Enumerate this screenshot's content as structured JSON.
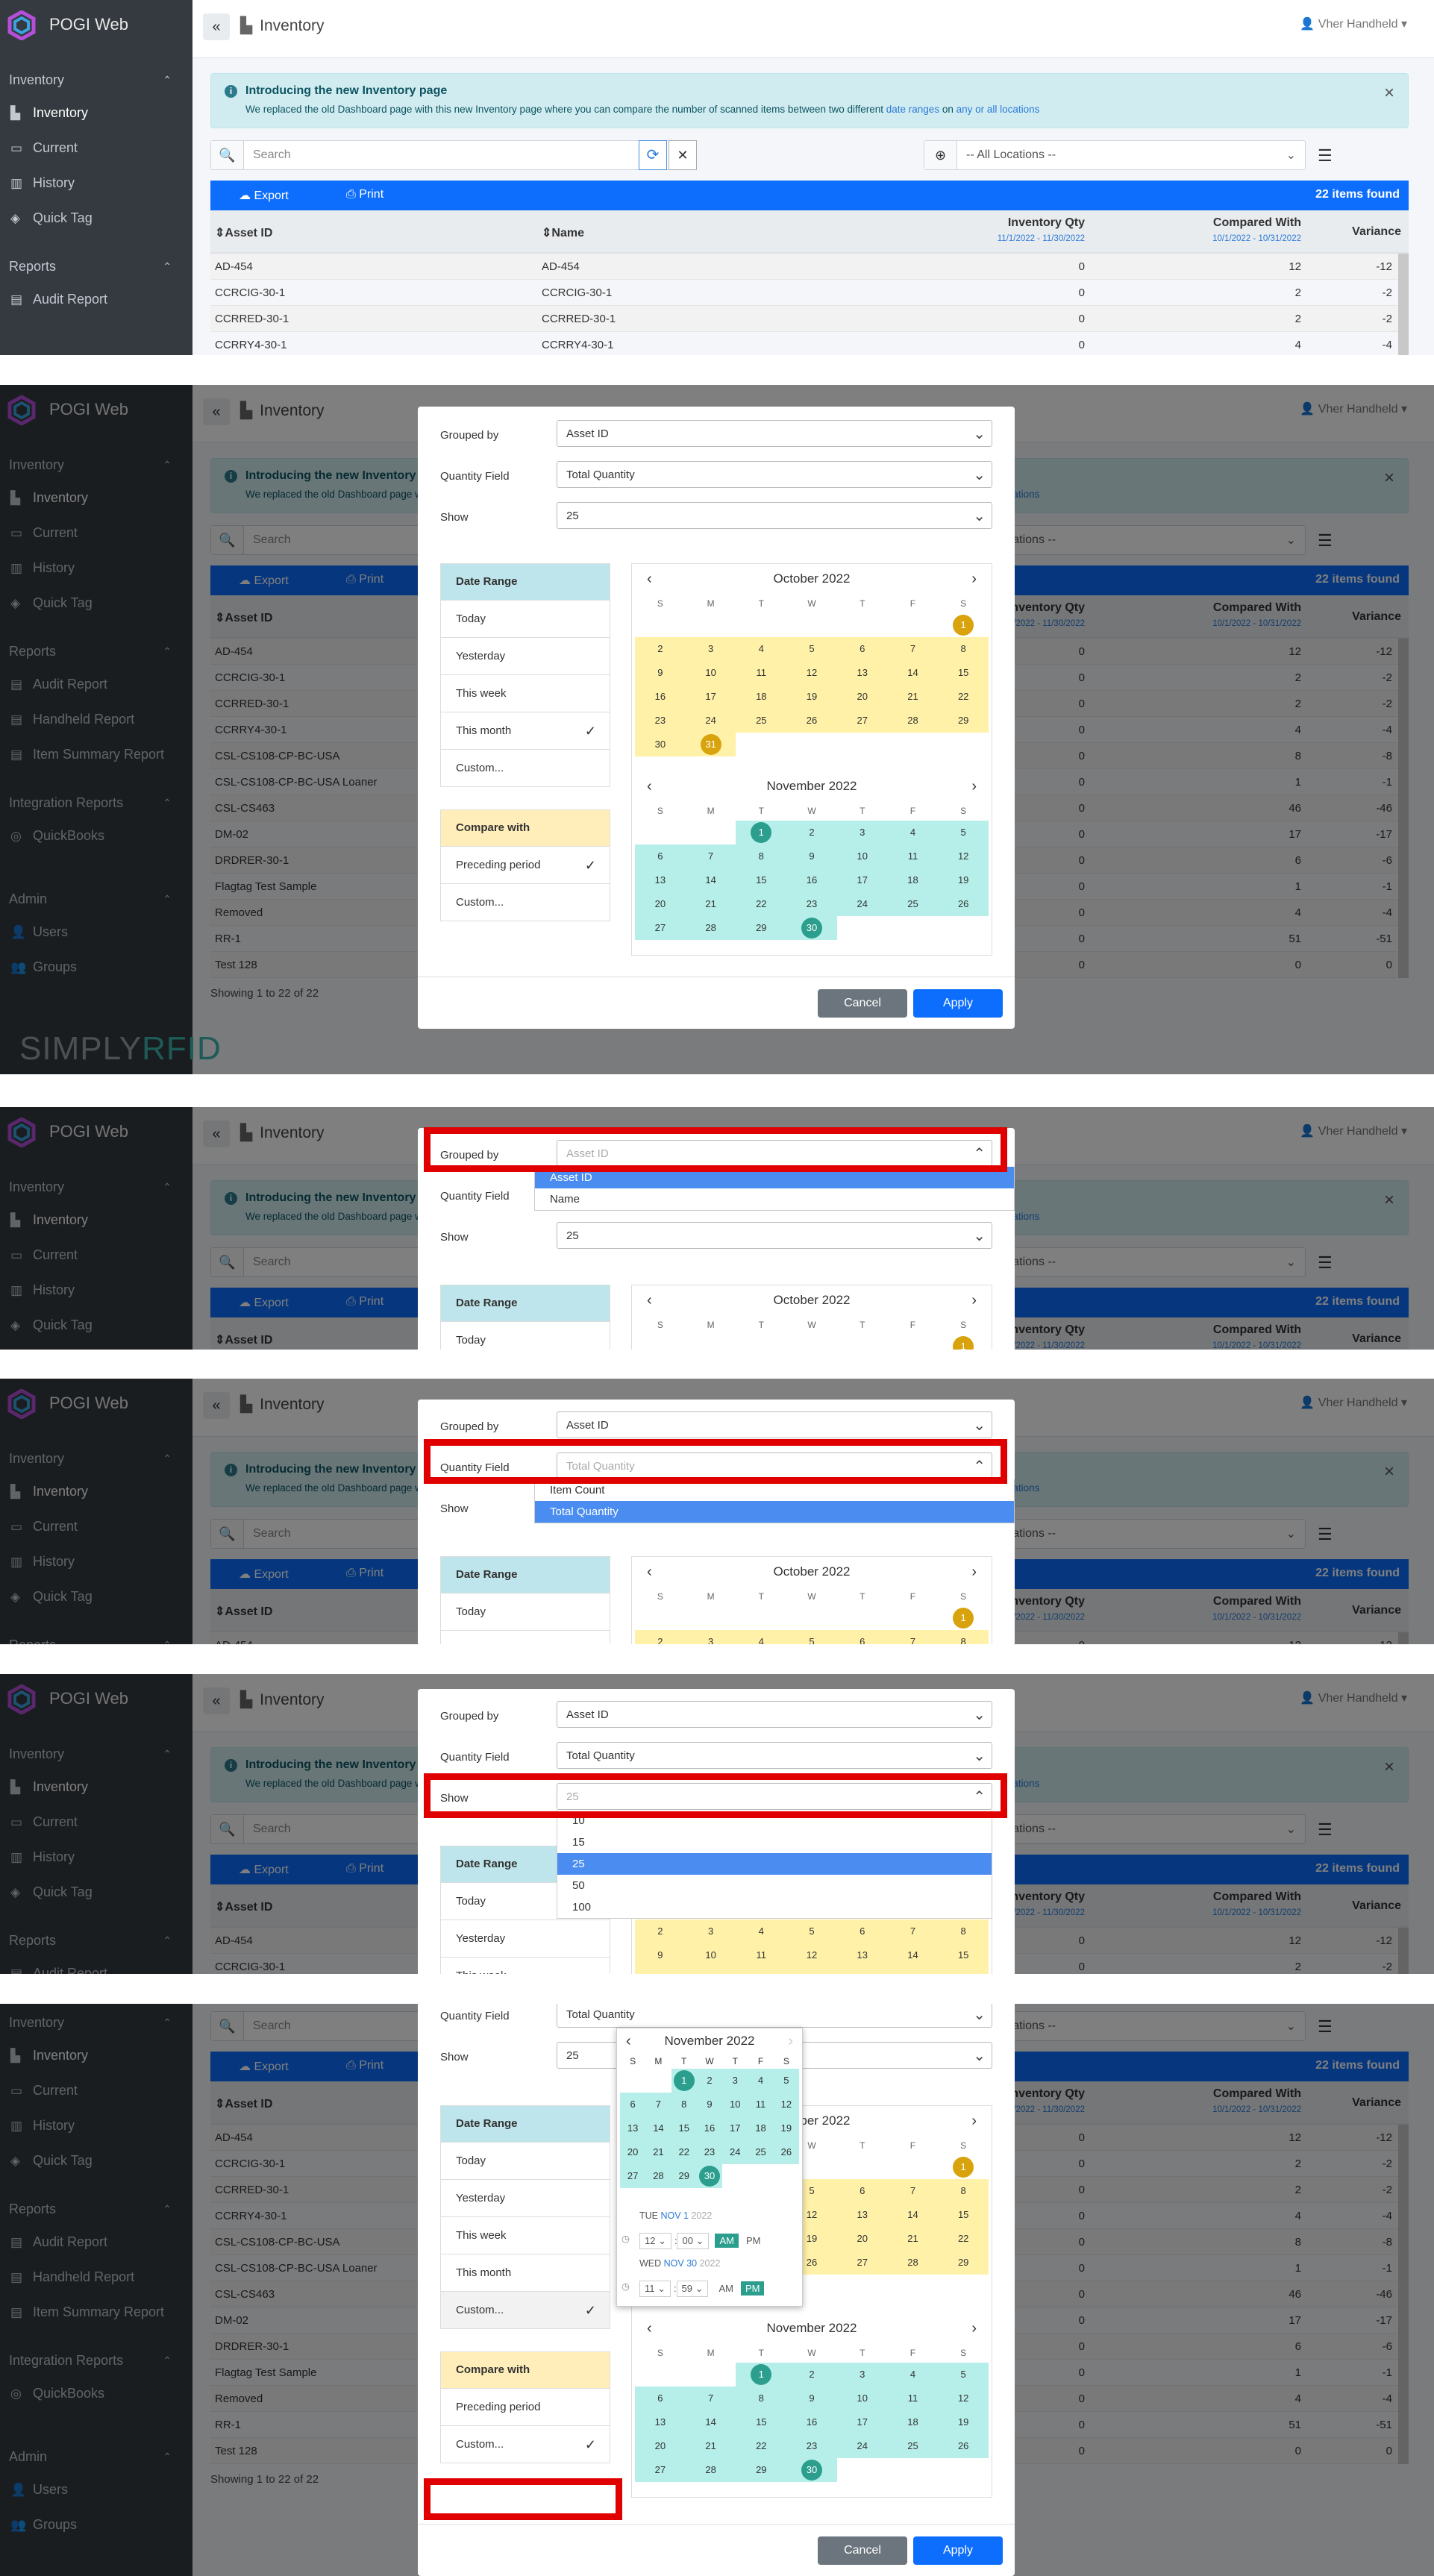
{
  "app": {
    "name": "POGI Web",
    "page_title": "Inventory",
    "user": "Vher Handheld"
  },
  "nav": {
    "inventory": "Inventory",
    "items": [
      "Inventory",
      "Current",
      "History",
      "Quick Tag"
    ],
    "reports": "Reports",
    "report_items": [
      "Audit Report",
      "Handheld Report",
      "Item Summary Report"
    ],
    "integration": "Integration Reports",
    "integration_items": [
      "QuickBooks"
    ],
    "admin": "Admin",
    "admin_items": [
      "Users",
      "Groups"
    ],
    "brand_a": "SIMPLY",
    "brand_b": "RFID"
  },
  "alert": {
    "title": "Introducing the new Inventory page",
    "text_a": "We replaced the old Dashboard page with this new Inventory page where you can compare the number of scanned items between two different ",
    "link1": "date ranges",
    "text_b": " on ",
    "link2": "any or all locations",
    "short_title": "Introducing the new Inventory",
    "short_text": "We replaced the old Dashboard pag",
    "short_tail": "y or all locations"
  },
  "search": {
    "placeholder": "Search"
  },
  "location": {
    "value": "-- All Locations --",
    "short": "tions --"
  },
  "toolbar": {
    "export": "Export",
    "print": "Print",
    "found": "22 items found"
  },
  "table": {
    "col_asset": "Asset ID",
    "col_name": "Name",
    "col_qty": "Inventory Qty",
    "qty_range": "11/1/2022 - 11/30/2022",
    "col_comp": "Compared With",
    "comp_range": "10/1/2022 - 10/31/2022",
    "col_var": "Variance",
    "qty_short": "ntory Qty",
    "rows": [
      [
        "AD-454",
        "AD-454",
        "0",
        "12",
        "-12"
      ],
      [
        "CCRCIG-30-1",
        "CCRCIG-30-1",
        "0",
        "2",
        "-2"
      ],
      [
        "CCRRED-30-1",
        "CCRRED-30-1",
        "0",
        "2",
        "-2"
      ],
      [
        "CCRRY4-30-1",
        "CCRRY4-30-1",
        "0",
        "4",
        "-4"
      ],
      [
        "CSL-CS108-CP-BC-USA",
        "",
        "0",
        "8",
        "-8"
      ],
      [
        "CSL-CS108-CP-BC-USA Loaner",
        "",
        "0",
        "1",
        "-1"
      ],
      [
        "CSL-CS463",
        "",
        "0",
        "46",
        "-46"
      ],
      [
        "DM-02",
        "",
        "0",
        "17",
        "-17"
      ],
      [
        "DRDRER-30-1",
        "",
        "0",
        "6",
        "-6"
      ],
      [
        "Flagtag Test Sample",
        "",
        "0",
        "1",
        "-1"
      ],
      [
        "Removed",
        "",
        "0",
        "4",
        "-4"
      ],
      [
        "RR-1",
        "",
        "0",
        "51",
        "-51"
      ],
      [
        "Test 128",
        "",
        "0",
        "0",
        "0"
      ]
    ],
    "showing": "Showing 1 to 22 of 22"
  },
  "modal": {
    "grouped_by": "Grouped by",
    "grouped_val": "Asset ID",
    "qty_field": "Quantity Field",
    "qty_val": "Total Quantity",
    "show": "Show",
    "show_val": "25",
    "grouped_opts": [
      "Asset ID",
      "Name"
    ],
    "qty_opts": [
      "Item Count",
      "Total Quantity"
    ],
    "show_opts": [
      "10",
      "15",
      "25",
      "50",
      "100"
    ],
    "date_range": "Date Range",
    "dr_items": [
      "Today",
      "Yesterday",
      "This week",
      "This month",
      "Custom..."
    ],
    "compare_with": "Compare with",
    "cw_items": [
      "Preceding period",
      "Custom..."
    ],
    "cancel": "Cancel",
    "apply": "Apply"
  },
  "cal": {
    "oct": "October 2022",
    "nov": "November 2022",
    "dows": [
      "S",
      "M",
      "T",
      "W",
      "T",
      "F",
      "S"
    ],
    "picker_start": {
      "dow": "TUE",
      "md": "NOV 1",
      "yr": "2022",
      "hh": "12",
      "mm": "00",
      "am": "AM",
      "pm": "PM"
    },
    "picker_end": {
      "dow": "WED",
      "md": "NOV 30",
      "yr": "2022",
      "hh": "11",
      "mm": "59",
      "am": "AM",
      "pm": "PM"
    }
  }
}
